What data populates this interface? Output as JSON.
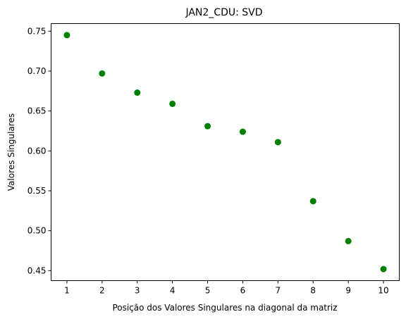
{
  "chart_data": {
    "type": "scatter",
    "title": "JAN2_CDU: SVD",
    "xlabel": "Posição dos Valores Singulares na diagonal da matriz",
    "ylabel": "Valores Singulares",
    "x": [
      1,
      2,
      3,
      4,
      5,
      6,
      7,
      8,
      9,
      10
    ],
    "y": [
      0.745,
      0.697,
      0.673,
      0.659,
      0.631,
      0.624,
      0.611,
      0.537,
      0.487,
      0.452
    ],
    "xlim": [
      0.55,
      10.45
    ],
    "ylim": [
      0.4375,
      0.7595
    ],
    "xticks": [
      "1",
      "2",
      "3",
      "4",
      "5",
      "6",
      "7",
      "8",
      "9",
      "10"
    ],
    "yticks": [
      "0.45",
      "0.50",
      "0.55",
      "0.60",
      "0.65",
      "0.70",
      "0.75"
    ],
    "marker_color": "#008000",
    "grid": false,
    "legend": "none"
  }
}
